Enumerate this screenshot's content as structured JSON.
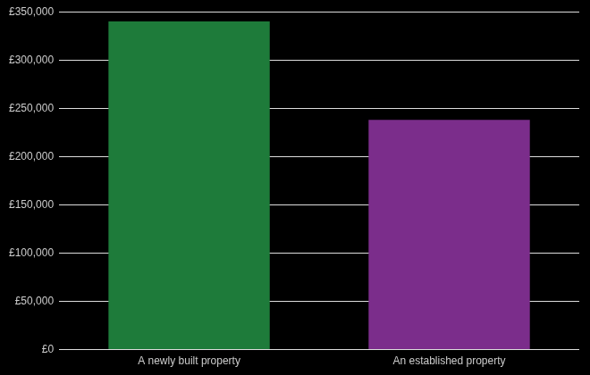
{
  "chart_data": {
    "type": "bar",
    "categories": [
      "A newly built property",
      "An established property"
    ],
    "values": [
      340000,
      238000
    ],
    "colors": [
      "#1e7b3a",
      "#7b2d8b"
    ],
    "ylim": [
      0,
      350000
    ],
    "yticks": [
      {
        "value": 0,
        "label": "£0"
      },
      {
        "value": 50000,
        "label": "£50,000"
      },
      {
        "value": 100000,
        "label": "£100,000"
      },
      {
        "value": 150000,
        "label": "£150,000"
      },
      {
        "value": 200000,
        "label": "£200,000"
      },
      {
        "value": 250000,
        "label": "£250,000"
      },
      {
        "value": 300000,
        "label": "£300,000"
      },
      {
        "value": 350000,
        "label": "£350,000"
      }
    ],
    "grid": true
  }
}
